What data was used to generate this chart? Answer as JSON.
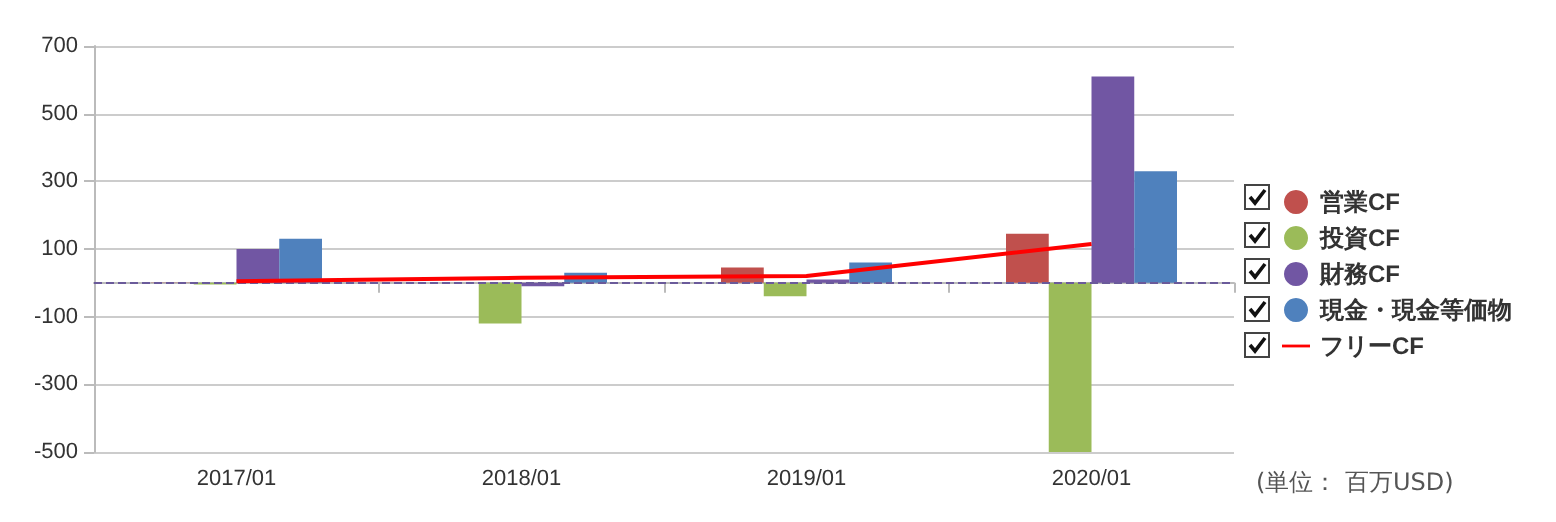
{
  "chart_data": {
    "type": "bar",
    "categories": [
      "2017/01",
      "2018/01",
      "2019/01",
      "2020/01"
    ],
    "series": [
      {
        "name": "営業CF",
        "color": "#c0504d",
        "values": [
          1,
          0,
          45,
          145
        ]
      },
      {
        "name": "投資CF",
        "color": "#9bbb59",
        "values": [
          -5,
          -120,
          -40,
          -500
        ]
      },
      {
        "name": "財務CF",
        "color": "#7156a3",
        "values": [
          100,
          -10,
          10,
          610
        ]
      },
      {
        "name": "現金・現金等価物",
        "color": "#4f81bd",
        "values": [
          130,
          30,
          60,
          330
        ]
      },
      {
        "name": "フリーCF",
        "type": "line",
        "color": "#ff0000",
        "values": [
          5,
          15,
          20,
          115
        ]
      }
    ],
    "ylim": [
      -500,
      700
    ],
    "yticks": [
      -500,
      -300,
      -100,
      100,
      300,
      500,
      700
    ],
    "grid": "y",
    "legend": "right",
    "marker": "none",
    "ref_lines": [
      {
        "axis": "y",
        "value": 0,
        "color": "#6a5a9a",
        "line_style": "dashed"
      }
    ],
    "annotations": [
      "(単位： 百万USD)"
    ]
  }
}
